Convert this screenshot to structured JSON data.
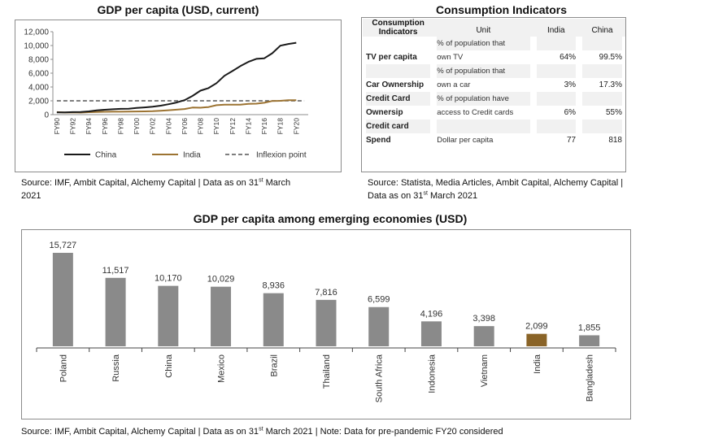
{
  "line_chart": {
    "title": "GDP per capita (USD, current)",
    "source_prefix": "Source: IMF, Ambit Capital, Alchemy Capital | Data as on 31",
    "source_sup": "st",
    "source_suffix": " March",
    "source_line2": "2021"
  },
  "table": {
    "title": "Consumption Indicators",
    "headers": {
      "indicator_line1": "Consumption",
      "indicator_line2": "Indicators",
      "unit": "Unit",
      "india": "India",
      "china": "China"
    },
    "rows": [
      {
        "ind_line1": "",
        "ind_line2": "TV per capita",
        "unit_line1": "% of population that",
        "unit_line2": "own TV",
        "india": "64%",
        "china": "99.5%"
      },
      {
        "ind_line1": "",
        "ind_line2": "Car Ownership",
        "unit_line1": "% of population that",
        "unit_line2": "own a car",
        "india": "3%",
        "china": "17.3%"
      },
      {
        "ind_line1": "Credit Card",
        "ind_line2": "Ownersip",
        "unit_line1": "% of population have",
        "unit_line2": "access to Credit cards",
        "india": "6%",
        "china": "55%"
      },
      {
        "ind_line1": "Credit card",
        "ind_line2": "Spend",
        "unit_line1": "",
        "unit_line2": "Dollar per capita",
        "india": "77",
        "china": "818"
      }
    ],
    "source_prefix": "Source: Statista, Media Articles, Ambit Capital, Alchemy Capital |",
    "source_line2_prefix": "Data as on 31",
    "source_sup": "st",
    "source_suffix": " March 2021"
  },
  "bar_chart": {
    "title": "GDP per capita among emerging economies (USD)",
    "source_prefix": "Source: IMF, Ambit Capital, Alchemy Capital | Data as on 31",
    "source_sup": "st",
    "source_suffix": " March 2021 | Note: Data for pre-pandemic FY20 considered"
  },
  "colors": {
    "china": "#1a1a1a",
    "india_line": "#9c7332",
    "inflexion": "#555555",
    "bar_grey": "#8a8a8a",
    "bar_india": "#8a6428"
  },
  "chart_data": [
    {
      "type": "line",
      "title": "GDP per capita (USD, current)",
      "xlabel": "",
      "ylabel": "",
      "ylim": [
        0,
        12000
      ],
      "yticks": [
        "0",
        "2,000",
        "4,000",
        "6,000",
        "8,000",
        "10,000",
        "12,000"
      ],
      "x": [
        "FY90",
        "FY91",
        "FY92",
        "FY93",
        "FY94",
        "FY95",
        "FY96",
        "FY97",
        "FY98",
        "FY99",
        "FY00",
        "FY01",
        "FY02",
        "FY03",
        "FY04",
        "FY05",
        "FY06",
        "FY07",
        "FY08",
        "FY09",
        "FY10",
        "FY11",
        "FY12",
        "FY13",
        "FY14",
        "FY15",
        "FY16",
        "FY17",
        "FY18",
        "FY19",
        "FY20",
        "FY21"
      ],
      "xtick_labels": [
        "FY90",
        "FY92",
        "FY94",
        "FY96",
        "FY98",
        "FY00",
        "FY02",
        "FY04",
        "FY06",
        "FY08",
        "FY10",
        "FY12",
        "FY14",
        "FY16",
        "FY18",
        "FY20"
      ],
      "series": [
        {
          "name": "China",
          "values": [
            320,
            330,
            370,
            380,
            470,
            610,
            710,
            780,
            830,
            860,
            960,
            1050,
            1150,
            1290,
            1510,
            1750,
            2100,
            2700,
            3470,
            3830,
            4550,
            5620,
            6300,
            7020,
            7640,
            8070,
            8150,
            8880,
            9980,
            10220,
            10400,
            null
          ]
        },
        {
          "name": "India",
          "values": [
            370,
            310,
            320,
            300,
            350,
            380,
            410,
            420,
            420,
            450,
            460,
            470,
            490,
            550,
            640,
            720,
            810,
            1020,
            1000,
            1100,
            1360,
            1450,
            1430,
            1440,
            1560,
            1590,
            1720,
            1980,
            2000,
            2090,
            2100,
            null
          ]
        },
        {
          "name": "Inflexion point",
          "values": [
            2000,
            2000,
            2000,
            2000,
            2000,
            2000,
            2000,
            2000,
            2000,
            2000,
            2000,
            2000,
            2000,
            2000,
            2000,
            2000,
            2000,
            2000,
            2000,
            2000,
            2000,
            2000,
            2000,
            2000,
            2000,
            2000,
            2000,
            2000,
            2000,
            2000,
            2000,
            2000
          ]
        }
      ],
      "legend": "bottom",
      "grid": false
    },
    {
      "type": "bar",
      "title": "GDP per capita among emerging economies (USD)",
      "categories": [
        "Poland",
        "Russia",
        "China",
        "Mexico",
        "Brazil",
        "Thailand",
        "South Africa",
        "Indonesia",
        "Vietnam",
        "India",
        "Bangladesh"
      ],
      "values": [
        15727,
        11517,
        10170,
        10029,
        8936,
        7816,
        6599,
        4196,
        3398,
        2099,
        1855
      ],
      "value_labels": [
        "15,727",
        "11,517",
        "10,170",
        "10,029",
        "8,936",
        "7,816",
        "6,599",
        "4,196",
        "3,398",
        "2,099",
        "1,855"
      ],
      "highlight": "India",
      "ylim": [
        0,
        17000
      ],
      "grid": false
    }
  ]
}
